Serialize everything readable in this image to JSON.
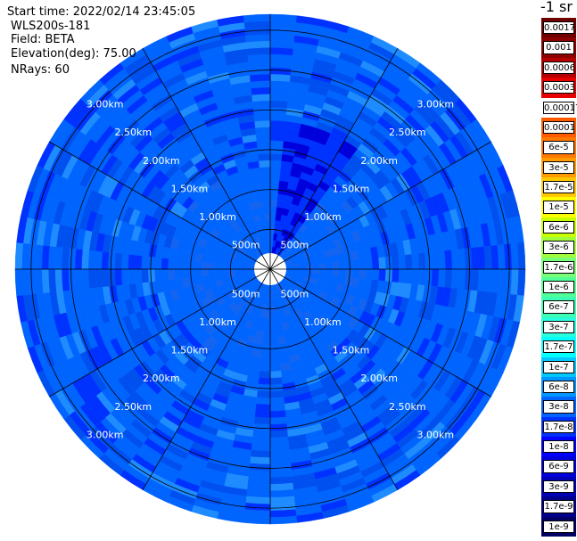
{
  "info": {
    "start_time": "Start time: 2022/02/14 23:45:05",
    "instrument": "WLS200s-181",
    "field": "Field: BETA",
    "elevation": "Elevation(deg): 75.00",
    "nrays": "NRays: 60"
  },
  "chart_data": {
    "type": "heatmap",
    "projection": "polar",
    "ranges_km": [
      0.5,
      1.0,
      1.5,
      2.0,
      2.5,
      3.0
    ],
    "ring_labels": [
      "500m",
      "1.00km",
      "1.50km",
      "2.00km",
      "2.50km",
      "3.00km"
    ],
    "spoke_angles_deg": [
      0,
      30,
      60,
      90,
      120,
      150,
      180,
      210,
      240,
      270,
      300,
      330
    ],
    "max_range_km": 3.2,
    "rays": 60,
    "colorbar": {
      "unit": "-1 sr",
      "labels": [
        "0.0017",
        "0.001",
        "0.0006",
        "0.0003",
        "0.00017",
        "0.0001",
        "6e-5",
        "3e-5",
        "1.7e-5",
        "1e-5",
        "6e-6",
        "3e-6",
        "1.7e-6",
        "1e-6",
        "6e-7",
        "3e-7",
        "1.7e-7",
        "1e-7",
        "6e-8",
        "3e-8",
        "1.7e-8",
        "1e-8",
        "6e-9",
        "3e-9",
        "1.7e-9",
        "1e-9"
      ],
      "colors": [
        "#6e0000",
        "#8c0000",
        "#b40000",
        "#e60000",
        "#ffffff",
        "#ff5a00",
        "#ff7800",
        "#ff9b00",
        "#ffc800",
        "#ffff00",
        "#c8ff00",
        "#a0ff3c",
        "#78ff78",
        "#50ff96",
        "#3cffb4",
        "#28ffdc",
        "#00ffff",
        "#00c8ff",
        "#0096ff",
        "#0064ff",
        "#0032ff",
        "#0000ff",
        "#0000dc",
        "#0000b4",
        "#00008c",
        "#000064"
      ]
    }
  }
}
